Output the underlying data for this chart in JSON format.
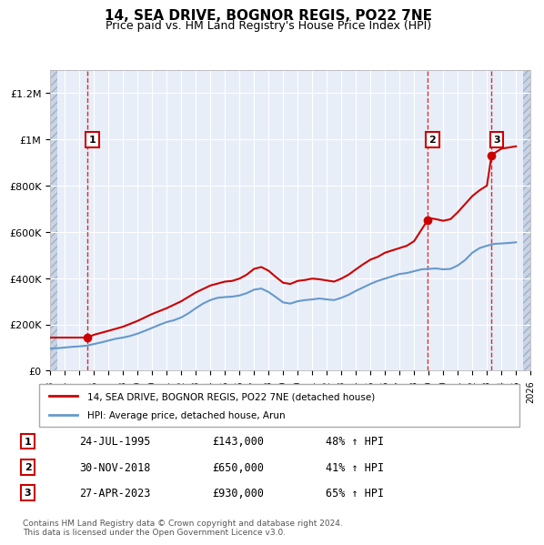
{
  "title": "14, SEA DRIVE, BOGNOR REGIS, PO22 7NE",
  "subtitle": "Price paid vs. HM Land Registry's House Price Index (HPI)",
  "legend_label_red": "14, SEA DRIVE, BOGNOR REGIS, PO22 7NE (detached house)",
  "legend_label_blue": "HPI: Average price, detached house, Arun",
  "footer": "Contains HM Land Registry data © Crown copyright and database right 2024.\nThis data is licensed under the Open Government Licence v3.0.",
  "transactions": [
    {
      "num": 1,
      "date": "24-JUL-1995",
      "price": 143000,
      "pct": "48%",
      "dir": "↑",
      "year": 1995.55
    },
    {
      "num": 2,
      "date": "30-NOV-2018",
      "price": 650000,
      "pct": "41%",
      "dir": "↑",
      "year": 2018.92
    },
    {
      "num": 3,
      "date": "27-APR-2023",
      "price": 930000,
      "pct": "65%",
      "dir": "↑",
      "year": 2023.32
    }
  ],
  "ylim": [
    0,
    1300000
  ],
  "xlim_start": 1993,
  "xlim_end": 2026,
  "yticks": [
    0,
    200000,
    400000,
    600000,
    800000,
    1000000,
    1200000
  ],
  "ytick_labels": [
    "£0",
    "£200K",
    "£400K",
    "£600K",
    "£800K",
    "£1M",
    "£1.2M"
  ],
  "xticks": [
    1993,
    1994,
    1995,
    1996,
    1997,
    1998,
    1999,
    2000,
    2001,
    2002,
    2003,
    2004,
    2005,
    2006,
    2007,
    2008,
    2009,
    2010,
    2011,
    2012,
    2013,
    2014,
    2015,
    2016,
    2017,
    2018,
    2019,
    2020,
    2021,
    2022,
    2023,
    2024,
    2025,
    2026
  ],
  "hpi_x": [
    1993.0,
    1993.5,
    1994.0,
    1994.5,
    1995.0,
    1995.5,
    1996.0,
    1996.5,
    1997.0,
    1997.5,
    1998.0,
    1998.5,
    1999.0,
    1999.5,
    2000.0,
    2000.5,
    2001.0,
    2001.5,
    2002.0,
    2002.5,
    2003.0,
    2003.5,
    2004.0,
    2004.5,
    2005.0,
    2005.5,
    2006.0,
    2006.5,
    2007.0,
    2007.5,
    2008.0,
    2008.5,
    2009.0,
    2009.5,
    2010.0,
    2010.5,
    2011.0,
    2011.5,
    2012.0,
    2012.5,
    2013.0,
    2013.5,
    2014.0,
    2014.5,
    2015.0,
    2015.5,
    2016.0,
    2016.5,
    2017.0,
    2017.5,
    2018.0,
    2018.5,
    2019.0,
    2019.5,
    2020.0,
    2020.5,
    2021.0,
    2021.5,
    2022.0,
    2022.5,
    2023.0,
    2023.5,
    2024.0,
    2024.5,
    2025.0
  ],
  "hpi_y": [
    96000,
    97000,
    100000,
    103000,
    105000,
    108000,
    115000,
    122000,
    130000,
    138000,
    143000,
    150000,
    160000,
    172000,
    185000,
    198000,
    210000,
    218000,
    230000,
    248000,
    270000,
    290000,
    305000,
    315000,
    318000,
    320000,
    325000,
    335000,
    350000,
    355000,
    340000,
    318000,
    295000,
    290000,
    300000,
    305000,
    308000,
    312000,
    308000,
    305000,
    315000,
    328000,
    345000,
    360000,
    375000,
    388000,
    398000,
    408000,
    418000,
    422000,
    430000,
    438000,
    440000,
    442000,
    438000,
    440000,
    455000,
    478000,
    510000,
    530000,
    540000,
    548000,
    550000,
    552000,
    555000
  ],
  "red_x": [
    1993.0,
    1993.5,
    1994.0,
    1994.5,
    1995.0,
    1995.55,
    1996.0,
    1997.0,
    1998.0,
    1999.0,
    2000.0,
    2001.0,
    2002.0,
    2003.0,
    2004.0,
    2005.0,
    2005.5,
    2006.0,
    2006.5,
    2007.0,
    2007.5,
    2008.0,
    2008.5,
    2009.0,
    2009.5,
    2010.0,
    2010.5,
    2011.0,
    2011.5,
    2012.0,
    2012.5,
    2013.0,
    2013.5,
    2014.0,
    2014.5,
    2015.0,
    2015.5,
    2016.0,
    2016.5,
    2017.0,
    2017.5,
    2018.0,
    2018.92,
    2019.0,
    2019.5,
    2020.0,
    2020.5,
    2021.0,
    2021.5,
    2022.0,
    2022.5,
    2023.0,
    2023.32,
    2023.5,
    2024.0,
    2024.5,
    2025.0
  ],
  "red_y": [
    143000,
    143000,
    143000,
    143000,
    143000,
    143000,
    155000,
    172000,
    190000,
    215000,
    245000,
    270000,
    300000,
    338000,
    368000,
    385000,
    388000,
    398000,
    415000,
    440000,
    448000,
    432000,
    405000,
    380000,
    375000,
    388000,
    392000,
    398000,
    395000,
    390000,
    385000,
    398000,
    415000,
    438000,
    460000,
    480000,
    492000,
    510000,
    520000,
    530000,
    540000,
    560000,
    650000,
    660000,
    655000,
    648000,
    655000,
    685000,
    720000,
    755000,
    780000,
    800000,
    930000,
    940000,
    960000,
    965000,
    970000
  ],
  "color_red": "#cc0000",
  "color_blue": "#6699cc",
  "bg_hatch_color": "#d0d8e8",
  "bg_plot_color": "#e8eef8",
  "grid_color": "#ffffff",
  "transaction_box_color": "#cc0000"
}
